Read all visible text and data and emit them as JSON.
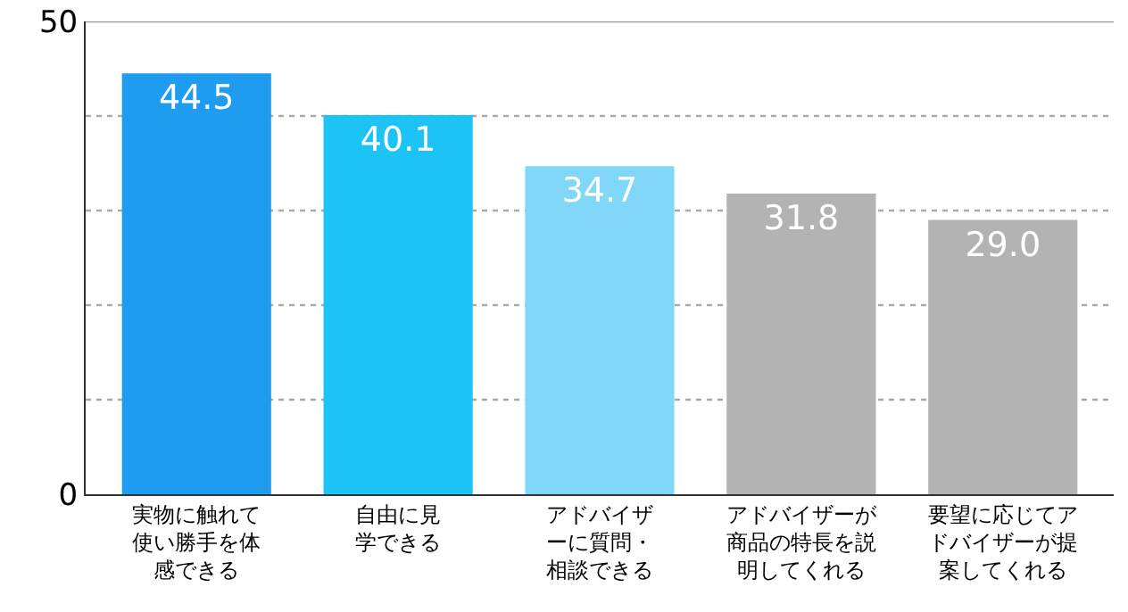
{
  "chart_data": {
    "type": "bar",
    "categories": [
      "実物に触れて使い勝手を体感できる",
      "自由に見学できる",
      "アドバイザーに質問・相談できる",
      "アドバイザーが商品の特長を説明してくれる",
      "要望に応じてアドバイザーが提案してくれる"
    ],
    "values": [
      44.5,
      40.1,
      34.7,
      31.8,
      29.0
    ],
    "value_labels": [
      "44.5",
      "40.1",
      "34.7",
      "31.8",
      "29.0"
    ],
    "colors": [
      "#1e9cf0",
      "#1ec3f5",
      "#80d7f7",
      "#b3b3b3",
      "#b3b3b3"
    ],
    "ylim": [
      0,
      50
    ],
    "yticks": [
      0,
      {
        "value": 10,
        "label": null
      },
      {
        "value": 20,
        "label": null
      },
      {
        "value": 30,
        "label": null
      },
      {
        "value": 40,
        "label": null
      },
      50
    ],
    "grid": "y"
  }
}
